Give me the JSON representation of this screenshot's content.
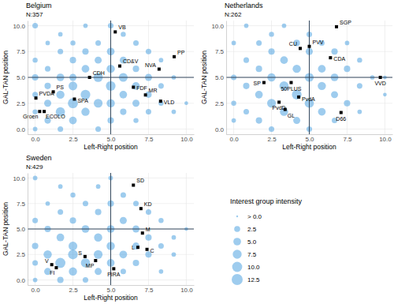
{
  "chart_data": [
    {
      "type": "scatter",
      "title": "Belgium",
      "subtitle": "N:357",
      "x_label": "Left-Right position",
      "y_label": "GAL-TAN position",
      "xlim": [
        -0.5,
        10.5
      ],
      "ylim": [
        -0.5,
        10.5
      ],
      "xticks": [
        {
          "value": 0,
          "label": "0.0"
        },
        2.5,
        {
          "value": 5,
          "label": "5.0"
        },
        7.5,
        {
          "value": 10,
          "label": "10.0"
        }
      ],
      "yticks": [
        {
          "value": 0,
          "label": "0.0"
        },
        2.5,
        {
          "value": 5,
          "label": "5.0"
        },
        7.5,
        {
          "value": 10,
          "label": "10.0"
        }
      ],
      "grid": true,
      "reference_lines": {
        "x": 5,
        "y": 5
      },
      "bubbles": {
        "color": "#4fa3e0",
        "x": [
          0,
          0,
          0,
          0,
          0,
          0,
          0.83,
          0.83,
          0.83,
          0.83,
          0.83,
          1.67,
          1.67,
          1.67,
          1.67,
          1.67,
          1.67,
          2.5,
          2.5,
          2.5,
          2.5,
          2.5,
          2.5,
          3.33,
          3.33,
          3.33,
          3.33,
          3.33,
          4.17,
          4.17,
          4.17,
          4.17,
          4.17,
          5,
          5,
          5,
          5,
          5,
          5,
          5.83,
          5.83,
          5.83,
          5.83,
          5.83,
          6.67,
          6.67,
          6.67,
          6.67,
          6.67,
          7.5,
          7.5,
          7.5,
          7.5,
          8.33,
          8.33,
          8.33,
          9.17,
          9.17,
          10
        ],
        "y": [
          10,
          6.67,
          5,
          3.33,
          1.67,
          0,
          8.33,
          5.83,
          4.17,
          2.5,
          0.83,
          9.17,
          7.5,
          5,
          3.33,
          1.67,
          0,
          8.33,
          6.67,
          5,
          4.17,
          2.5,
          0.83,
          10,
          7.5,
          5.83,
          3.33,
          1.67,
          8.33,
          6.67,
          5,
          2.5,
          0,
          10,
          7.5,
          5.83,
          4.17,
          2.5,
          0.83,
          9.17,
          6.67,
          5,
          3.33,
          1.67,
          8.33,
          5.83,
          4.17,
          2.5,
          0.83,
          7.5,
          5,
          3.33,
          1.67,
          6.67,
          4.17,
          2.5,
          5,
          1.67,
          2.5
        ],
        "size": [
          2,
          1.5,
          3,
          2,
          1.5,
          1,
          1,
          2,
          3,
          4,
          3,
          1,
          2,
          5,
          6,
          8,
          2,
          1.5,
          3,
          4,
          7,
          10,
          5,
          1,
          3,
          5,
          9,
          6,
          2,
          4,
          8,
          7,
          2,
          2,
          5,
          6,
          9,
          6,
          3,
          1.5,
          4,
          7,
          5,
          3,
          2,
          3,
          5,
          4,
          1.5,
          2,
          4,
          3,
          2,
          1,
          2,
          1.5,
          1,
          1,
          0.5
        ]
      },
      "parties": {
        "color": "#000000",
        "marker": "square",
        "labels": [
          "VB",
          "PP",
          "NVA",
          "CD&V",
          "CDH",
          "FDF",
          "MR",
          "VLD",
          "PS",
          "SPA",
          "PVDA",
          "Groen",
          "ECOLO"
        ],
        "x": [
          5.3,
          9.2,
          8.2,
          5.6,
          3.6,
          6.5,
          7.3,
          8.3,
          1.2,
          2.6,
          0.05,
          0.3,
          0.6
        ],
        "y": [
          9.4,
          7.0,
          5.8,
          6.1,
          5.0,
          4.05,
          3.3,
          2.7,
          3.6,
          2.9,
          3.0,
          1.7,
          1.7
        ]
      }
    },
    {
      "type": "scatter",
      "title": "Netherlands",
      "subtitle": "N:262",
      "x_label": "Left-Right position",
      "y_label": "GAL-TAN position",
      "xlim": [
        -0.5,
        10.5
      ],
      "ylim": [
        -0.5,
        10.5
      ],
      "xticks": [
        {
          "value": 0,
          "label": "0.0"
        },
        2.5,
        {
          "value": 5,
          "label": "5.0"
        },
        7.5,
        {
          "value": 10,
          "label": "10.0"
        }
      ],
      "yticks": [
        {
          "value": 0,
          "label": "0.0"
        },
        2.5,
        {
          "value": 5,
          "label": "5.0"
        },
        7.5,
        {
          "value": 10,
          "label": "10.0"
        }
      ],
      "grid": true,
      "reference_lines": {
        "x": 5,
        "y": 5
      },
      "bubbles": {
        "color": "#4fa3e0",
        "x": [
          0,
          0,
          0,
          0,
          0.83,
          0.83,
          0.83,
          0.83,
          1.67,
          1.67,
          1.67,
          1.67,
          2.5,
          2.5,
          2.5,
          2.5,
          2.5,
          3.33,
          3.33,
          3.33,
          3.33,
          4.17,
          4.17,
          4.17,
          4.17,
          5,
          5,
          5,
          5,
          5,
          5.83,
          5.83,
          5.83,
          5.83,
          6.67,
          6.67,
          6.67,
          6.67,
          7.5,
          7.5,
          7.5,
          8.33,
          8.33,
          8.33,
          9.17,
          10,
          10
        ],
        "y": [
          8.33,
          5,
          2.5,
          0.83,
          10,
          6.67,
          4.17,
          1.67,
          8.33,
          5.83,
          3.33,
          0.83,
          9.17,
          7.5,
          5,
          2.5,
          0,
          10,
          6.67,
          4.17,
          1.67,
          8.33,
          5.83,
          3.33,
          0.83,
          9.17,
          7.5,
          5,
          2.5,
          0,
          8.33,
          5.83,
          4.17,
          1.67,
          7.5,
          5,
          3.33,
          0.83,
          8.33,
          5.83,
          2.5,
          6.67,
          4.17,
          1.67,
          5,
          5,
          3.33
        ],
        "size": [
          1,
          2,
          1.5,
          1,
          1,
          2,
          3,
          2,
          2,
          3,
          5,
          3,
          1.5,
          3,
          6,
          7,
          2,
          1,
          5,
          8,
          6,
          3,
          6,
          9,
          4,
          2,
          4,
          7,
          8,
          2,
          2,
          5,
          6,
          5,
          3,
          5,
          4,
          2,
          1,
          3,
          3,
          1.5,
          2,
          1,
          1,
          0.5,
          0.5
        ]
      },
      "parties": {
        "color": "#000000",
        "marker": "square",
        "labels": [
          "SGP",
          "PVV",
          "CU",
          "CDA",
          "VVD",
          "SP",
          "50PLUS",
          "PvdA",
          "PvdD",
          "GL",
          "D66"
        ],
        "x": [
          6.8,
          5.0,
          4.4,
          6.4,
          9.7,
          2.0,
          3.8,
          4.3,
          3.0,
          3.4,
          7.1
        ],
        "y": [
          9.9,
          8.0,
          7.8,
          6.9,
          5.0,
          4.5,
          4.5,
          3.1,
          2.6,
          1.9,
          1.6
        ]
      }
    },
    {
      "type": "scatter",
      "title": "Sweden",
      "subtitle": "N:429",
      "x_label": "Left-Right position",
      "y_label": "GAL-TAN position",
      "xlim": [
        -0.5,
        10.5
      ],
      "ylim": [
        -0.5,
        10.5
      ],
      "xticks": [
        {
          "value": 0,
          "label": "0.0"
        },
        2.5,
        {
          "value": 5,
          "label": "5.0"
        },
        7.5,
        {
          "value": 10,
          "label": "10.0"
        }
      ],
      "yticks": [
        {
          "value": 0,
          "label": "0.0"
        },
        2.5,
        {
          "value": 5,
          "label": "5.0"
        },
        7.5,
        {
          "value": 10,
          "label": "10.0"
        }
      ],
      "grid": true,
      "reference_lines": {
        "x": 5,
        "y": 5
      },
      "bubbles": {
        "color": "#4fa3e0",
        "x": [
          0,
          0,
          0,
          0,
          0,
          0.83,
          0.83,
          0.83,
          0.83,
          1.67,
          1.67,
          1.67,
          1.67,
          1.67,
          2.5,
          2.5,
          2.5,
          2.5,
          2.5,
          3.33,
          3.33,
          3.33,
          3.33,
          4.17,
          4.17,
          4.17,
          4.17,
          4.17,
          5,
          5,
          5,
          5,
          5,
          5.83,
          5.83,
          5.83,
          5.83,
          6.67,
          6.67,
          6.67,
          6.67,
          7.5,
          7.5,
          7.5,
          8.33,
          8.33,
          8.33,
          9.17,
          9.17,
          10
        ],
        "y": [
          10,
          5.83,
          3.33,
          1.67,
          0,
          7.5,
          5,
          2.5,
          0.83,
          9.17,
          6.67,
          4.17,
          1.67,
          0,
          8.33,
          5.83,
          3.33,
          2.5,
          0.83,
          7.5,
          5,
          1.67,
          0,
          9.17,
          6.67,
          4.17,
          2.5,
          0.83,
          10,
          7.5,
          5,
          3.33,
          1.67,
          8.33,
          5.83,
          2.5,
          0.83,
          7.5,
          5,
          3.33,
          1.67,
          6.67,
          4.17,
          2.5,
          5.83,
          3.33,
          0.83,
          4.17,
          2.5,
          5
        ],
        "size": [
          1,
          2,
          3,
          2,
          1,
          1,
          3,
          6,
          4,
          1,
          2,
          5,
          10,
          3,
          1.5,
          3,
          7,
          9,
          6,
          2,
          5,
          8,
          2,
          1,
          3,
          6,
          7,
          4,
          1,
          3,
          5,
          6,
          5,
          2,
          4,
          5,
          2,
          2,
          4,
          4,
          3,
          2,
          3,
          3,
          1.5,
          2,
          1,
          1,
          1,
          0.5
        ]
      },
      "parties": {
        "color": "#000000",
        "marker": "square",
        "labels": [
          "SD",
          "KD",
          "M",
          "L",
          "C",
          "S",
          "MP",
          "V",
          "FI",
          "PIRA"
        ],
        "x": [
          6.5,
          7.0,
          7.1,
          6.8,
          7.4,
          3.3,
          4.0,
          1.1,
          1.4,
          5.2
        ],
        "y": [
          9.3,
          7.0,
          4.6,
          3.2,
          3.0,
          2.3,
          1.9,
          1.5,
          1.2,
          1.1
        ]
      }
    }
  ],
  "size_legend": {
    "title": "Interest group intensity",
    "range": [
      0,
      12.5
    ],
    "ticks": [
      {
        "value": 0,
        "label": "> 0.0"
      },
      2.5,
      {
        "value": 5,
        "label": "5.0"
      },
      7.5,
      {
        "value": 10,
        "label": "10.0"
      },
      12.5
    ]
  }
}
